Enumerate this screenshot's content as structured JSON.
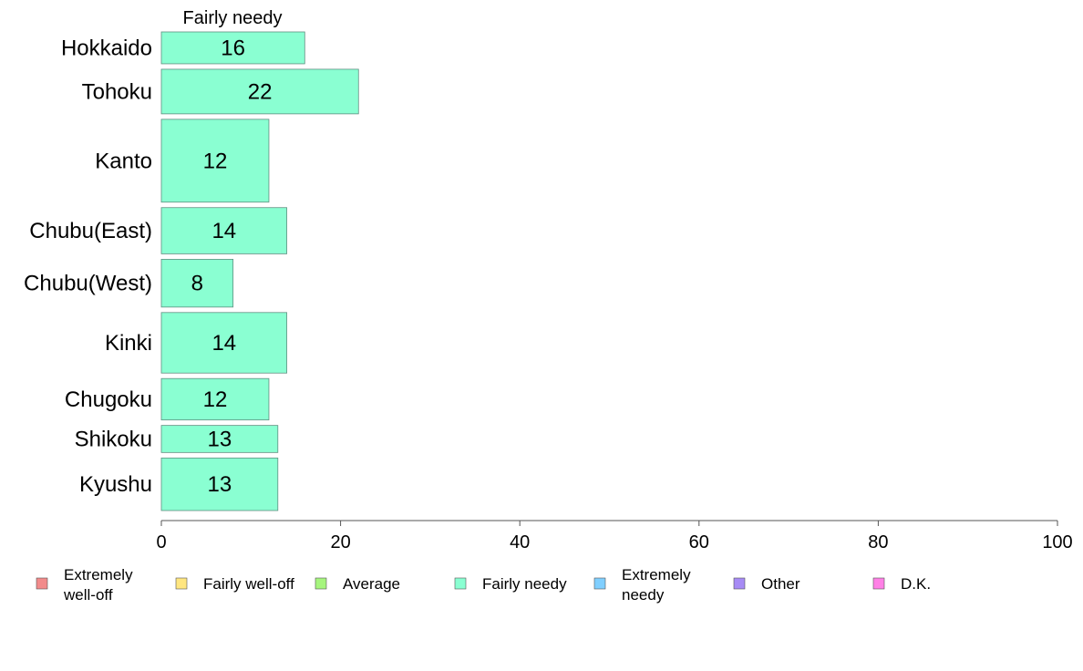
{
  "chart_data": {
    "type": "bar",
    "orientation": "horizontal",
    "title": "Fairly needy",
    "categories": [
      "Hokkaido",
      "Tohoku",
      "Kanto",
      "Chubu(East)",
      "Chubu(West)",
      "Kinki",
      "Chugoku",
      "Shikoku",
      "Kyushu"
    ],
    "values": [
      16,
      22,
      12,
      14,
      8,
      14,
      12,
      13,
      13
    ],
    "value_labels": [
      "16",
      "22",
      "12",
      "14",
      "8",
      "14",
      "12",
      "13",
      "13"
    ],
    "bar_widths_relative": [
      1.0,
      1.4,
      2.6,
      1.45,
      1.5,
      1.9,
      1.3,
      0.85,
      1.65
    ],
    "xlim": [
      0,
      100
    ],
    "xticks": [
      0,
      20,
      40,
      60,
      80,
      100
    ],
    "xtick_labels": [
      "0",
      "20",
      "40",
      "60",
      "80",
      "100"
    ],
    "grid": false,
    "legend_position": "bottom",
    "legend": [
      {
        "label": [
          "Extremely",
          "well-off"
        ],
        "color": "#f28b8b"
      },
      {
        "label": [
          "Fairly well-off"
        ],
        "color": "#ffe680"
      },
      {
        "label": [
          "Average"
        ],
        "color": "#a6f57e"
      },
      {
        "label": [
          "Fairly needy"
        ],
        "color": "#8affd2"
      },
      {
        "label": [
          "Extremely",
          "needy"
        ],
        "color": "#80cfff"
      },
      {
        "label": [
          "Other"
        ],
        "color": "#a78bf5"
      },
      {
        "label": [
          "D.K."
        ],
        "color": "#ff80e6"
      }
    ],
    "bar_color": "#8affd2"
  }
}
